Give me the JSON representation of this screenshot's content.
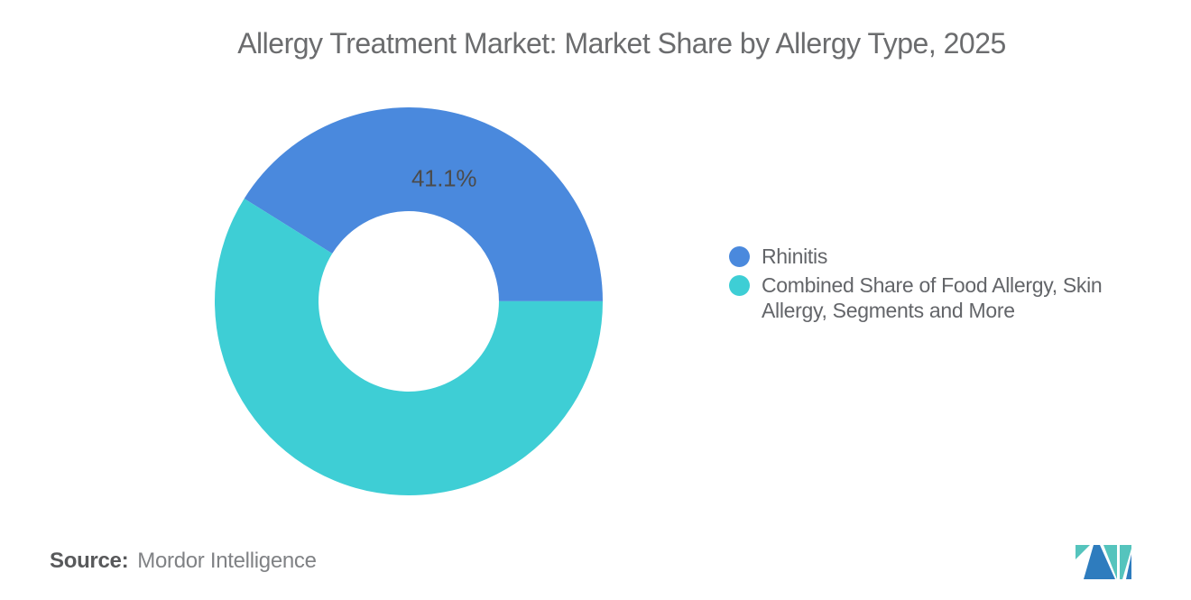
{
  "header": {
    "title": "Allergy Treatment Market: Market Share by Allergy Type, 2025"
  },
  "chart_data": {
    "type": "pie",
    "subtype": "donut",
    "title": "Allergy Treatment Market: Market Share by Allergy Type, 2025",
    "units": "percent market share",
    "segments": [
      {
        "label": "Rhinitis",
        "value": 41.1,
        "color": "#4A89DD",
        "data_label": "41.1%"
      },
      {
        "label": "Combined Share of Food Allergy, Skin Allergy, Segments and More",
        "value": 58.9,
        "color": "#3ECED5",
        "data_label": ""
      }
    ],
    "layout": {
      "start_angle_deg_math": 148,
      "direction": "clockwise",
      "inner_radius_ratio": 0.465,
      "label_radius_ratio": 0.66,
      "legend_position": "right-middle",
      "background": "#ffffff"
    }
  },
  "legend": {
    "items": [
      {
        "label": "Rhinitis",
        "color": "#4A89DD"
      },
      {
        "label": "Combined Share of Food Allergy, Skin Allergy, Segments and More",
        "color": "#3ECED5"
      }
    ]
  },
  "footer": {
    "source_prefix": "Source:",
    "source_text": "Mordor Intelligence"
  },
  "branding": {
    "logo": "mordor-intelligence-logo",
    "logo_blue": "#2E7CBE",
    "logo_teal": "#55C4BD"
  }
}
